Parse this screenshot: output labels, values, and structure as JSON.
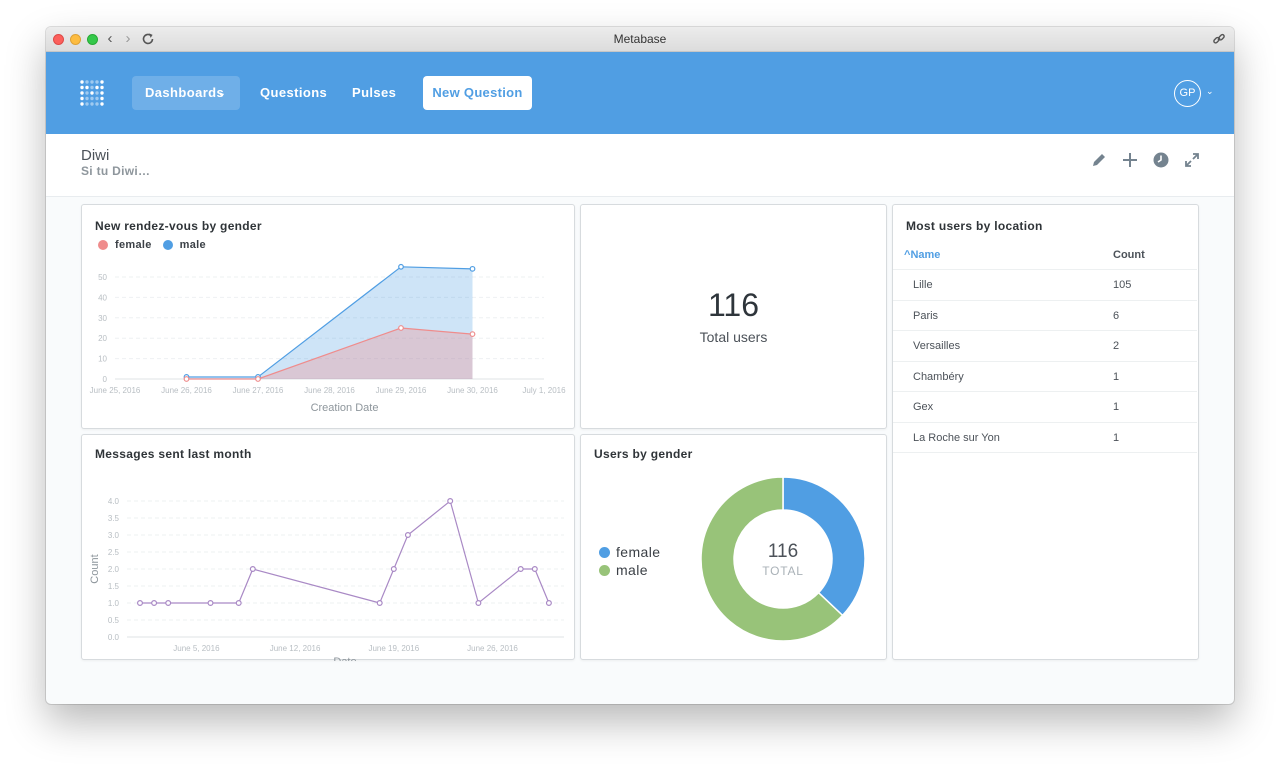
{
  "window": {
    "title": "Metabase"
  },
  "nav": {
    "dashboards_label": "Dashboards",
    "questions_label": "Questions",
    "pulses_label": "Pulses",
    "new_question_label": "New Question",
    "avatar_initials": "GP"
  },
  "dashboard": {
    "title": "Diwi",
    "description": "Si tu Diwi…"
  },
  "colors": {
    "brand": "#509ee3",
    "female": "#ef8c8c",
    "male": "#509ee3",
    "messages": "#a989c5",
    "donut_female": "#509ee3",
    "donut_male": "#98c379"
  },
  "cards": {
    "rendezvous": {
      "title": "New rendez-vous by gender",
      "legend": [
        "female",
        "male"
      ]
    },
    "total_users": {
      "value": "116",
      "label": "Total users"
    },
    "locations": {
      "title": "Most users by location",
      "columns": [
        "Name",
        "Count"
      ],
      "sort_indicator": "^",
      "rows": [
        {
          "name": "Lille",
          "count": "105"
        },
        {
          "name": "Paris",
          "count": "6"
        },
        {
          "name": "Versailles",
          "count": "2"
        },
        {
          "name": "Chambéry",
          "count": "1"
        },
        {
          "name": "Gex",
          "count": "1"
        },
        {
          "name": "La Roche sur Yon",
          "count": "1"
        }
      ]
    },
    "messages": {
      "title": "Messages sent last month"
    },
    "gender": {
      "title": "Users by gender",
      "legend": [
        "female",
        "male"
      ],
      "total_value": "116",
      "total_label": "TOTAL"
    }
  },
  "chart_data": [
    {
      "type": "area",
      "title": "New rendez-vous by gender",
      "xlabel": "Creation Date",
      "ylabel": "",
      "x": [
        "June 25, 2016",
        "June 26, 2016",
        "June 27, 2016",
        "June 28, 2016",
        "June 29, 2016",
        "June 30, 2016",
        "July 1, 2016"
      ],
      "ylim": [
        0,
        50
      ],
      "yticks": [
        0,
        10,
        20,
        30,
        40,
        50
      ],
      "series": [
        {
          "name": "female",
          "x": [
            "June 26, 2016",
            "June 27, 2016",
            "June 29, 2016",
            "June 30, 2016"
          ],
          "values": [
            0,
            0,
            25,
            22
          ]
        },
        {
          "name": "male",
          "x": [
            "June 26, 2016",
            "June 27, 2016",
            "June 29, 2016",
            "June 30, 2016"
          ],
          "values": [
            1,
            1,
            55,
            54
          ]
        }
      ],
      "grid": true,
      "legend_position": "top-left"
    },
    {
      "type": "line",
      "title": "Messages sent last month",
      "xlabel": "Date",
      "ylabel": "Count",
      "xticks": [
        "June 5, 2016",
        "June 12, 2016",
        "June 19, 2016",
        "June 26, 2016"
      ],
      "x": [
        "2016-06-01",
        "2016-06-02",
        "2016-06-03",
        "2016-06-06",
        "2016-06-08",
        "2016-06-09",
        "2016-06-18",
        "2016-06-19",
        "2016-06-20",
        "2016-06-23",
        "2016-06-25",
        "2016-06-28",
        "2016-06-29",
        "2016-06-30"
      ],
      "values": [
        1,
        1,
        1,
        1,
        1,
        2,
        1,
        2,
        3,
        4,
        1,
        2,
        2,
        1
      ],
      "ylim": [
        0,
        4
      ],
      "yticks": [
        0.0,
        0.5,
        1.0,
        1.5,
        2.0,
        2.5,
        3.0,
        3.5,
        4.0
      ],
      "grid": true
    },
    {
      "type": "pie",
      "title": "Users by gender",
      "categories": [
        "female",
        "male"
      ],
      "values": [
        43,
        73
      ],
      "total": 116
    }
  ]
}
